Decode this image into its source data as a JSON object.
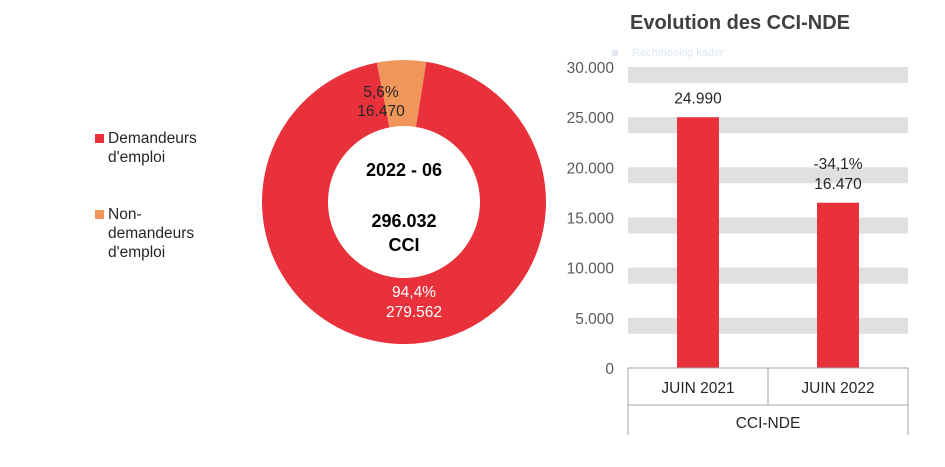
{
  "chart_data": [
    {
      "type": "pie",
      "variant": "donut",
      "center_labels": [
        "2022 - 06",
        "296.032",
        "CCI"
      ],
      "slices": [
        {
          "name": "Demandeurs d'emploi",
          "value": 279562,
          "percent_label": "94,4%",
          "value_label": "279.562",
          "color": "#e8313a"
        },
        {
          "name": "Non-demandeurs d'emploi",
          "value": 16470,
          "percent_label": "5,6%",
          "value_label": "16.470",
          "color": "#f0965a"
        }
      ],
      "legend": [
        {
          "label": "Demandeurs d'emploi",
          "color": "#e8313a"
        },
        {
          "label": "Non-demandeurs d'emploi",
          "color": "#f0965a"
        }
      ],
      "legend_position": "left"
    },
    {
      "type": "bar",
      "title": "Evolution des CCI-NDE",
      "ghost_text": "Rechthoekig kader",
      "categories": [
        "JUIN 2021",
        "JUIN 2022"
      ],
      "group_label": "CCI-NDE",
      "values": [
        24990,
        16470
      ],
      "data_labels": [
        [
          "24.990"
        ],
        [
          "-34,1%",
          "16.470"
        ]
      ],
      "y_ticks": [
        "0",
        "5.000",
        "10.000",
        "15.000",
        "20.000",
        "25.000",
        "30.000"
      ],
      "ylim": [
        0,
        30000
      ],
      "bar_color": "#e8313a",
      "grid_band_color": "#e0e0e0",
      "xlabel": "",
      "ylabel": ""
    }
  ]
}
